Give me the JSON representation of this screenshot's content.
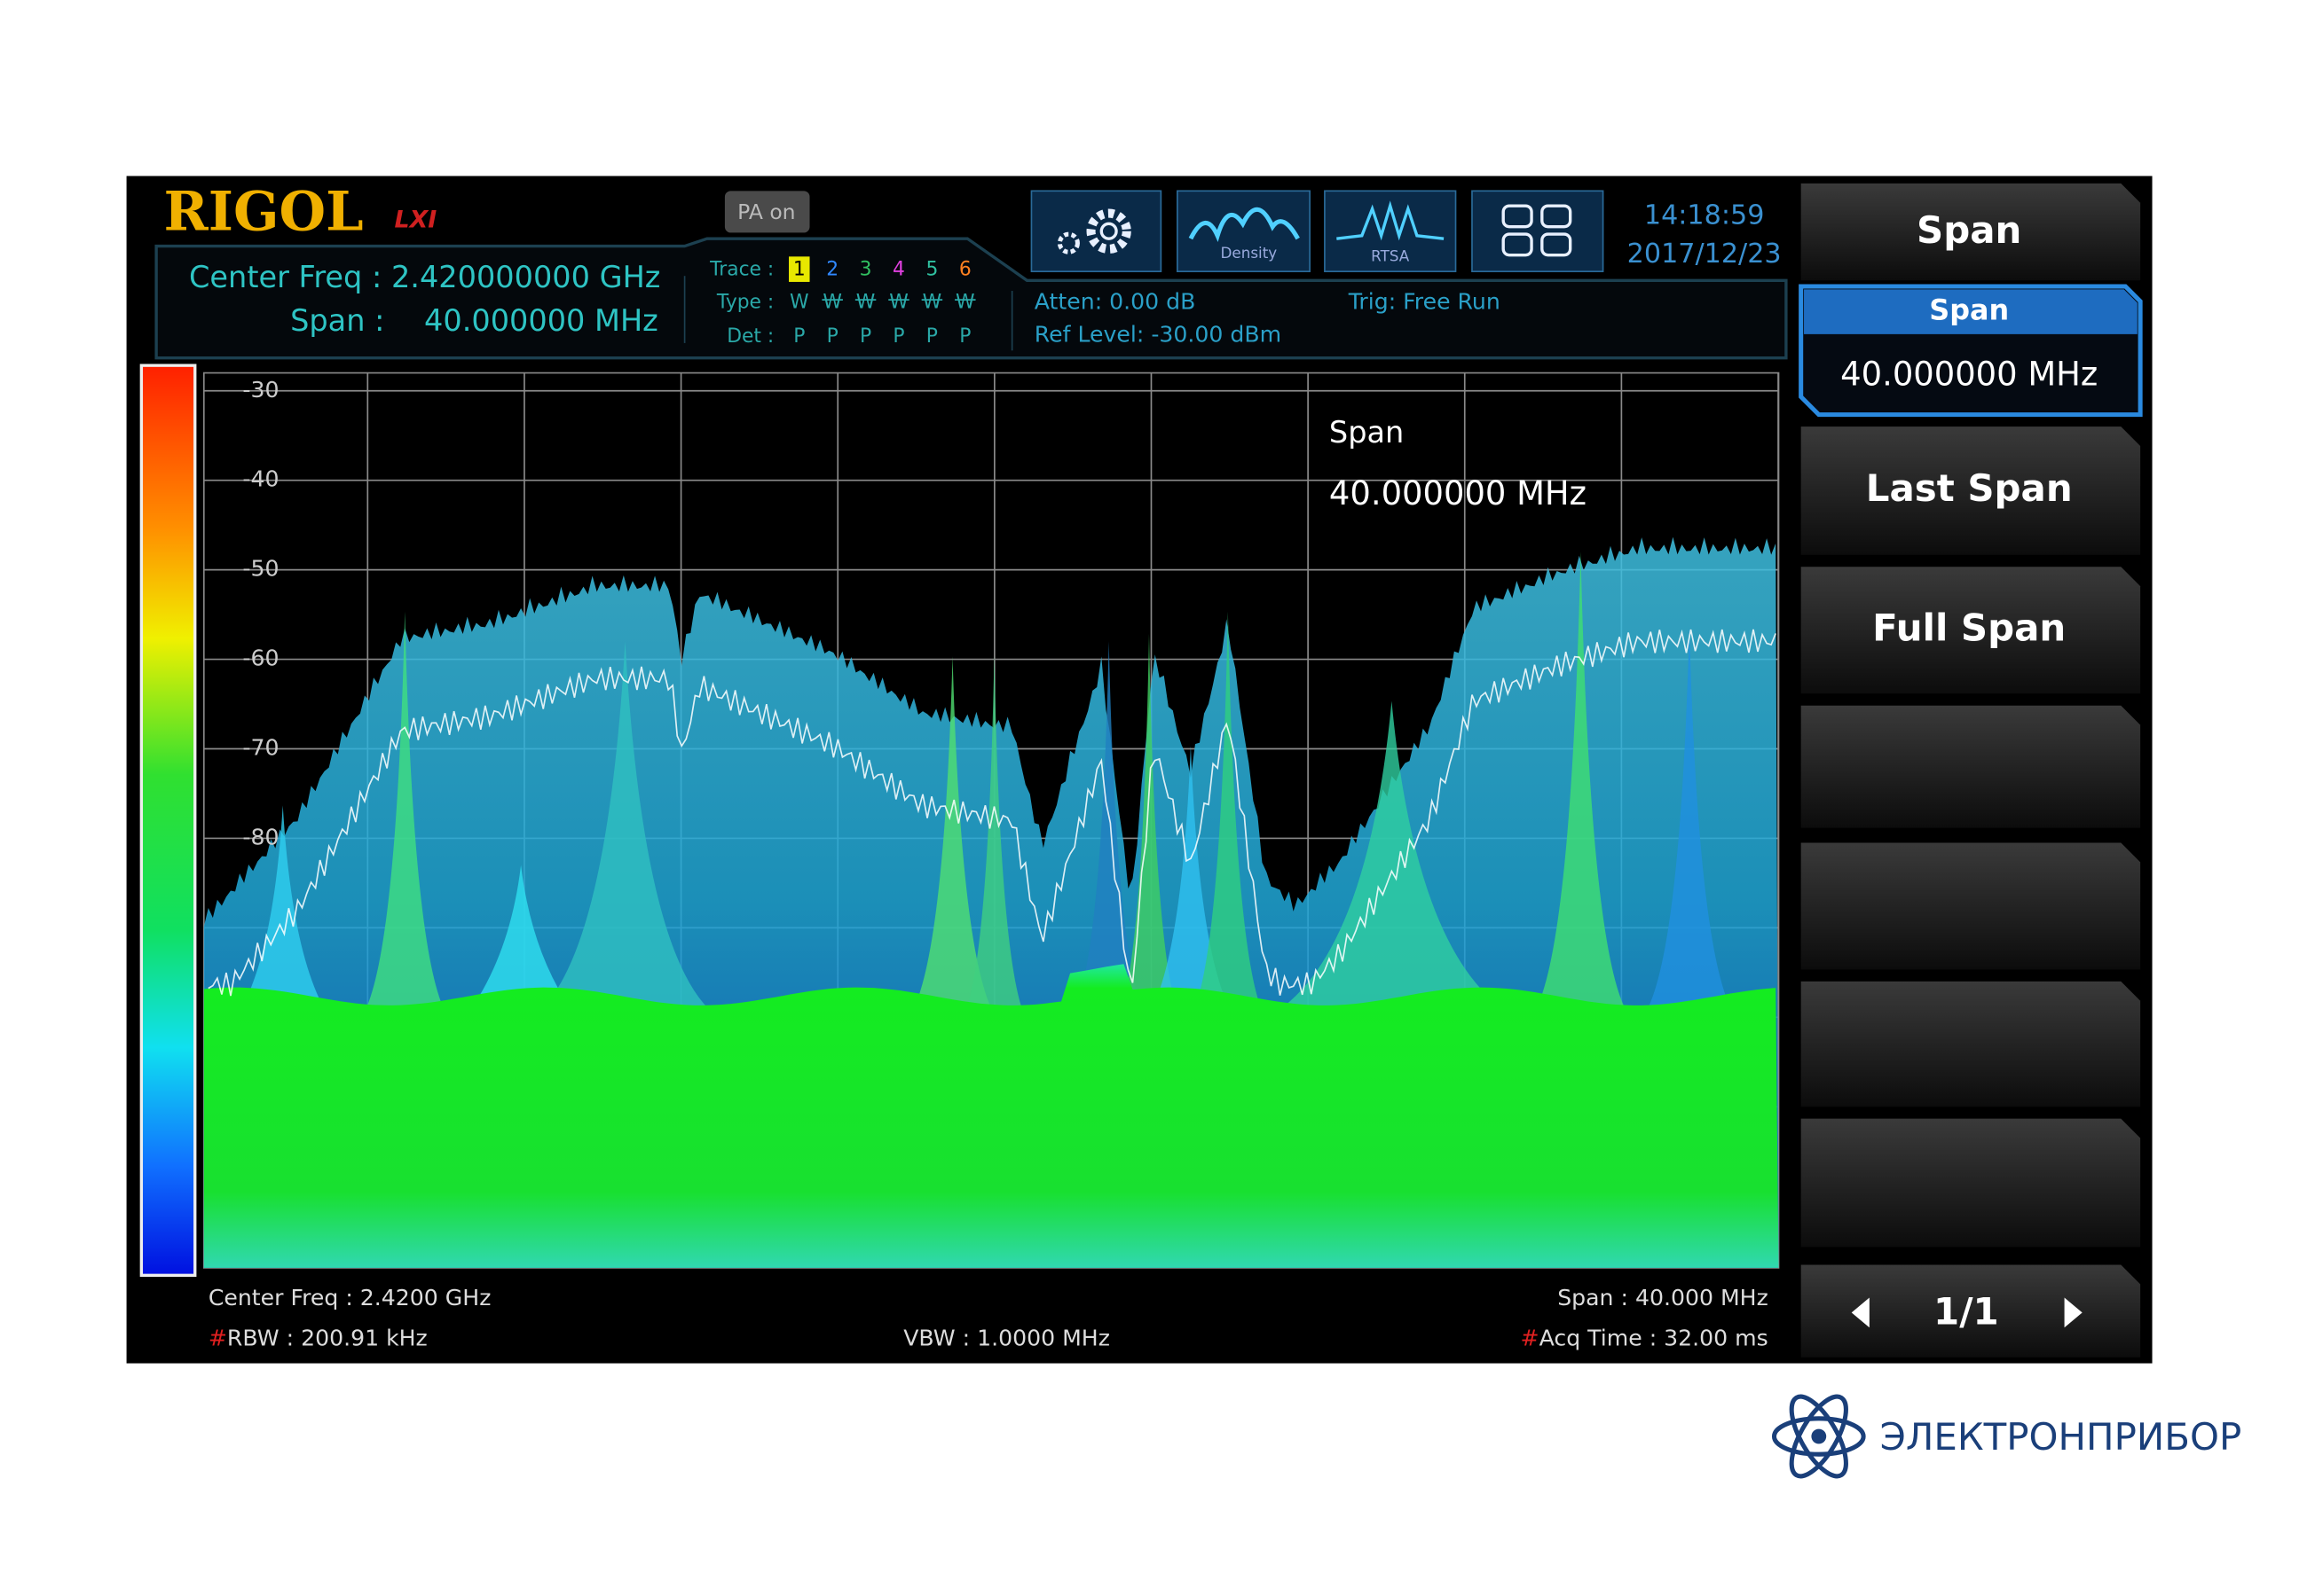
{
  "header": {
    "brand": "RIGOL",
    "lxi": "LXI",
    "pa_status": "PA on",
    "center_freq": "Center Freq : 2.420000000 GHz",
    "span_label": "Span :",
    "span_value": "40.000000 MHz",
    "time": "14:18:59",
    "date": "2017/12/23"
  },
  "trace_table": {
    "trace_label": "Trace :",
    "traces": [
      1,
      2,
      3,
      4,
      5,
      6
    ],
    "type_label": "Type :",
    "types": [
      "W",
      "W",
      "W",
      "W",
      "W",
      "W"
    ],
    "det_label": "Det :",
    "detectors": [
      "P",
      "P",
      "P",
      "P",
      "P",
      "P"
    ]
  },
  "status": {
    "atten": "Atten: 0.00 dB",
    "ref_level": "Ref Level: -30.00 dBm",
    "trigger": "Trig: Free Run"
  },
  "toolbar": {
    "density": "Density",
    "rtsa": "RTSA"
  },
  "plot": {
    "yticks": [
      -30,
      -40,
      -50,
      -60,
      -70,
      -80
    ],
    "annotation_title": "Span",
    "annotation_value": "40.000000 MHz"
  },
  "footer": {
    "center_freq": "Center Freq : 2.4200 GHz",
    "rbw_flag": "#",
    "rbw": "RBW : 200.91 kHz",
    "vbw": "VBW : 1.0000 MHz",
    "span": "Span : 40.000 MHz",
    "acq_flag": "#",
    "acq_time": "Acq Time : 32.00 ms"
  },
  "softkeys": {
    "title": "Span",
    "active": {
      "title": "Span",
      "value": "40.000000 MHz"
    },
    "items": [
      "Last Span",
      "Full Span"
    ],
    "page": "1/1"
  },
  "watermark": "ЭЛЕКТРОНПРИБОР"
}
